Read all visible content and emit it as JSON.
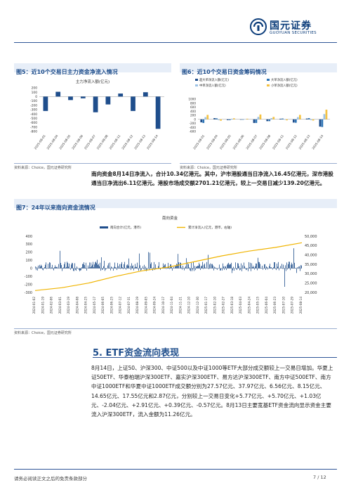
{
  "header": {
    "logo_cn": "国元证券",
    "logo_en": "GUOYUAN SECURITIES"
  },
  "fig5": {
    "label": "图5：近10个交易日主力资金净流入情况",
    "chart_title": "主力净流入额(亿元)",
    "source": "资料来源：Choice，国元证券研究所"
  },
  "fig6": {
    "label": "图6：近10个交易日资金筹码情况",
    "source": "资料来源：Choice，国元证券研究所",
    "legend": [
      "超大单净流入额(亿元)",
      "大单净流入额(亿元)",
      "中单净流入额(亿元)",
      "小单净流入额(亿元)"
    ]
  },
  "para1": "南向资金8月14日净流入，合计10.34亿港元。其中，沪市港股通当日净流入16.45亿港元，深市港股通当日净流出6.11亿港元。港股市场成交额2701.21亿港元，较上一交易日减少139.20亿港元。",
  "fig7": {
    "label": "图7：24年以来南向资金流情况",
    "chart_title": "南向资金",
    "legend": [
      "南向合计(亿元，港币)",
      "累计净流入(亿元，港币，右轴)"
    ],
    "source": "资料来源：Choice，国元证券研究所"
  },
  "section": {
    "title": "5. ETF资金流向表现"
  },
  "para2": "8月14日，上证50、沪深300、中证500以及中证1000等ETF大部分成交额较上一交易日增加。华夏上证50ETF、华泰柏瑞沪深300ETF、嘉实沪深300ETF、易方达沪深300ETF、南方中证500ETF、南方中证1000ETF和华夏中证1000ETF成交额分别为27.57亿元、37.97亿元、6.56亿元、8.15亿元、14.65亿元、17.55亿元和2.87亿元，分别较上一交易日变化+5.77亿元、+5.70亿元、+1.03亿元、-2.04亿元、+2.91亿元、+0.39亿元、-0.57亿元。8月13日主要宽基ETF资金流向显示资金主要流入沪深300ETF，流入金额为11.26亿元。",
  "footer": {
    "disclaimer": "请务必阅读正文之后的免责条款部分",
    "page": "7 / 12"
  },
  "colors": {
    "navy": "#1f4e8c",
    "bar_blue": "#2e5597",
    "orange": "#f0b400",
    "light_blue": "#8eaadb",
    "gold": "#e8b84a"
  },
  "chart_data": [
    {
      "type": "bar",
      "title": "主力净流入额(亿元)",
      "categories": [
        "2025-08-01",
        "2025-08-04",
        "2025-08-05",
        "2025-08-06",
        "2025-08-07",
        "2025-08-08",
        "2025-08-11",
        "2025-08-12",
        "2025-08-13",
        "2025-08-14"
      ],
      "values": [
        -330,
        110,
        -80,
        -40,
        -360,
        -180,
        70,
        -330,
        100,
        -740
      ],
      "yticks": [
        "200",
        "100",
        "0",
        "-100",
        "-200",
        "-300",
        "-400",
        "-500",
        "-600",
        "-700",
        "-800"
      ],
      "ylim": [
        -800,
        200
      ]
    },
    {
      "type": "bar",
      "categories": [
        "2025-08-01",
        "2025-08-04",
        "2025-08-05",
        "2025-08-06",
        "2025-08-07",
        "2025-08-08",
        "2025-08-11",
        "2025-08-12",
        "2025-08-13",
        "2025-08-14"
      ],
      "series": [
        {
          "name": "超大单净流入额(亿元)",
          "values": [
            -150,
            60,
            -40,
            -20,
            -180,
            -90,
            30,
            -160,
            40,
            -360
          ]
        },
        {
          "name": "大单净流入额(亿元)",
          "values": [
            -180,
            50,
            -40,
            -20,
            -180,
            -90,
            40,
            -170,
            60,
            -380
          ]
        },
        {
          "name": "中单净流入额(亿元)",
          "values": [
            110,
            -40,
            30,
            10,
            120,
            60,
            -20,
            110,
            -40,
            260
          ]
        },
        {
          "name": "小单净流入额(亿元)",
          "values": [
            220,
            -70,
            50,
            30,
            240,
            120,
            -50,
            220,
            -60,
            480
          ]
        }
      ],
      "yticks": [
        "1000",
        "800",
        "600",
        "400",
        "200",
        "0",
        "-200",
        "-400",
        "-600"
      ],
      "ylim": [
        -600,
        1000
      ]
    },
    {
      "type": "bar+line",
      "title": "南向资金",
      "left_yticks": [
        "400",
        "300",
        "200",
        "100",
        "0",
        "-100",
        "-200",
        "-300"
      ],
      "right_yticks": [
        "50,000",
        "45,000",
        "40,000",
        "35,000",
        "30,000",
        "25,000",
        "20,000"
      ],
      "ylim_left": [
        -300,
        400
      ],
      "ylim_right": [
        20000,
        50000
      ],
      "xticks": [
        "2024-01-02",
        "2024-01-19",
        "2024-02-06",
        "2024-03-01",
        "2024-03-19",
        "2024-04-08",
        "2024-04-25",
        "2024-05-17",
        "2024-06-05",
        "2024-06-25",
        "2024-07-12",
        "2024-07-31",
        "2024-08-19",
        "2024-09-05",
        "2024-09-24",
        "2024-10-17",
        "2024-11-04",
        "2024-11-21",
        "2024-12-10",
        "2024-12-30",
        "2025-01-17",
        "2025-02-10",
        "2025-02-27",
        "2025-03-18",
        "2025-04-03",
        "2025-04-24",
        "2025-05-15",
        "2025-06-04",
        "2025-06-23",
        "2025-07-10",
        "2025-07-29",
        "2025-08-14"
      ],
      "cumulative_path": [
        [
          0,
          21000
        ],
        [
          0.1,
          22500
        ],
        [
          0.2,
          25000
        ],
        [
          0.3,
          28500
        ],
        [
          0.4,
          31500
        ],
        [
          0.5,
          33500
        ],
        [
          0.6,
          36500
        ],
        [
          0.7,
          39500
        ],
        [
          0.8,
          42000
        ],
        [
          0.9,
          44000
        ],
        [
          1,
          46500
        ]
      ]
    }
  ]
}
